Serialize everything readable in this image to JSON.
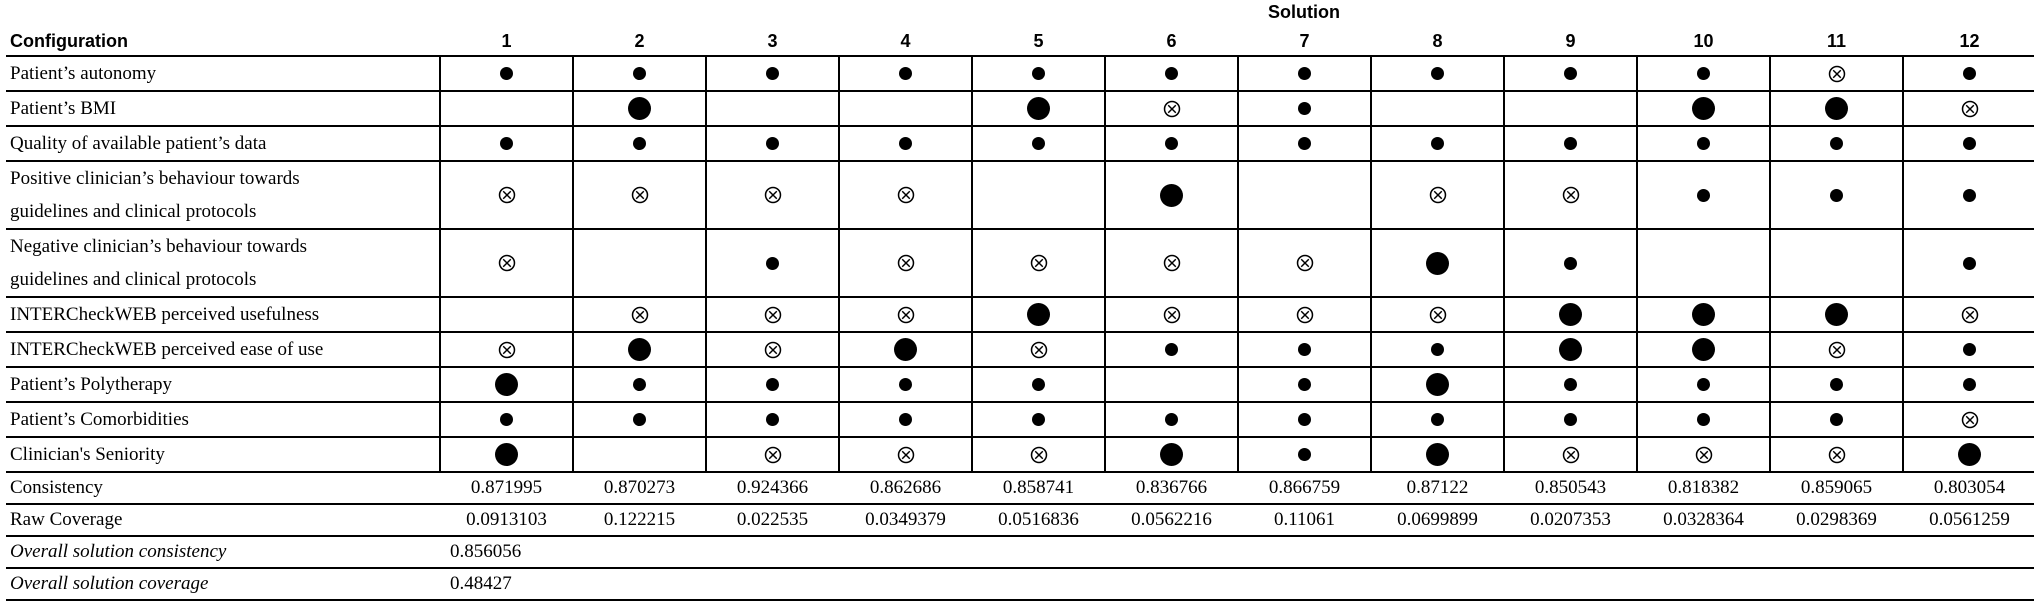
{
  "header": {
    "solution_label": "Solution",
    "config_label": "Configuration",
    "solutions": [
      "1",
      "2",
      "3",
      "4",
      "5",
      "6",
      "7",
      "8",
      "9",
      "10",
      "11",
      "12"
    ]
  },
  "legend": {
    "core_present": "large-filled-dot",
    "peripheral_present": "small-filled-dot",
    "absent": "circled-cross",
    "dont_care": "blank"
  },
  "rows": [
    {
      "label_lines": [
        "Patient’s autonomy"
      ],
      "cells": [
        "s",
        "s",
        "s",
        "s",
        "s",
        "s",
        "s",
        "s",
        "s",
        "s",
        "x",
        "s"
      ]
    },
    {
      "label_lines": [
        "Patient’s BMI"
      ],
      "cells": [
        "",
        "L",
        "",
        "",
        "L",
        "x",
        "s",
        "",
        "",
        "L",
        "L",
        "x"
      ]
    },
    {
      "label_lines": [
        "Quality of available patient’s data"
      ],
      "cells": [
        "s",
        "s",
        "s",
        "s",
        "s",
        "s",
        "s",
        "s",
        "s",
        "s",
        "s",
        "s"
      ]
    },
    {
      "label_lines": [
        "Positive clinician’s behaviour towards",
        "guidelines and clinical protocols"
      ],
      "cells": [
        "x",
        "x",
        "x",
        "x",
        "",
        "L",
        "",
        "x",
        "x",
        "s",
        "s",
        "s"
      ]
    },
    {
      "label_lines": [
        "Negative clinician’s behaviour towards",
        "guidelines and clinical protocols"
      ],
      "cells": [
        "x",
        "",
        "s",
        "x",
        "x",
        "x",
        "x",
        "L",
        "s",
        "",
        "",
        "s"
      ]
    },
    {
      "label_lines": [
        "INTERCheckWEB perceived usefulness"
      ],
      "cells": [
        "",
        "x",
        "x",
        "x",
        "L",
        "x",
        "x",
        "x",
        "L",
        "L",
        "L",
        "x"
      ]
    },
    {
      "label_lines": [
        "INTERCheckWEB perceived ease of use"
      ],
      "cells": [
        "x",
        "L",
        "x",
        "L",
        "x",
        "s",
        "s",
        "s",
        "L",
        "L",
        "x",
        "s"
      ]
    },
    {
      "label_lines": [
        "Patient’s Polytherapy"
      ],
      "cells": [
        "L",
        "s",
        "s",
        "s",
        "s",
        "",
        "s",
        "L",
        "s",
        "s",
        "s",
        "s"
      ]
    },
    {
      "label_lines": [
        "Patient’s Comorbidities"
      ],
      "cells": [
        "s",
        "s",
        "s",
        "s",
        "s",
        "s",
        "s",
        "s",
        "s",
        "s",
        "s",
        "x"
      ]
    },
    {
      "label_lines": [
        "Clinician's Seniority"
      ],
      "cells": [
        "L",
        "",
        "x",
        "x",
        "x",
        "L",
        "s",
        "L",
        "x",
        "x",
        "x",
        "L"
      ]
    }
  ],
  "stats": {
    "consistency_label": "Consistency",
    "consistency": [
      "0.871995",
      "0.870273",
      "0.924366",
      "0.862686",
      "0.858741",
      "0.836766",
      "0.866759",
      "0.87122",
      "0.850543",
      "0.818382",
      "0.859065",
      "0.803054"
    ],
    "coverage_label": "Raw Coverage",
    "coverage": [
      "0.0913103",
      "0.122215",
      "0.022535",
      "0.0349379",
      "0.0516836",
      "0.0562216",
      "0.11061",
      "0.0699899",
      "0.0207353",
      "0.0328364",
      "0.0298369",
      "0.0561259"
    ],
    "overall_consistency_label": "Overall solution consistency",
    "overall_consistency": "0.856056",
    "overall_coverage_label": "Overall solution coverage",
    "overall_coverage": "0.48427"
  }
}
